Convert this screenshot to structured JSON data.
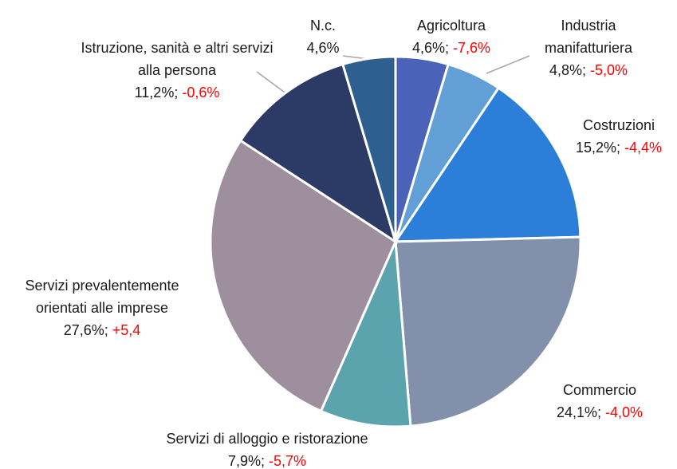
{
  "chart_data": {
    "type": "pie",
    "categories": [
      "Agricoltura",
      "Industria manifatturiera",
      "Costruzioni",
      "Commercio",
      "Servizi di alloggio e ristorazione",
      "Servizi prevalentemente orientati alle imprese",
      "Istruzione, sanità e altri servizi alla persona",
      "N.c."
    ],
    "values": [
      4.6,
      4.8,
      15.2,
      24.1,
      7.9,
      27.6,
      11.2,
      4.6
    ],
    "value_labels": [
      "4,6%;",
      "4,8%;",
      "15,2%;",
      "24,1%;",
      "7,9%;",
      "27,6%;",
      "11,2%;",
      "4,6%"
    ],
    "changes": [
      -7.6,
      -5.0,
      -4.4,
      -4.0,
      -5.7,
      5.4,
      -0.6,
      null
    ],
    "change_labels": [
      "-7,6%",
      "-5,0%",
      "-4,4%",
      "-4,0%",
      "-5,7%",
      "+5,4",
      "-0,6%",
      null
    ],
    "colors": [
      "#4a62b8",
      "#619fd6",
      "#2b7fd9",
      "#8290ab",
      "#5ba3ad",
      "#9e8f9f",
      "#2c3b66",
      "#2d5f8f"
    ],
    "change_color": "#ff0000"
  }
}
